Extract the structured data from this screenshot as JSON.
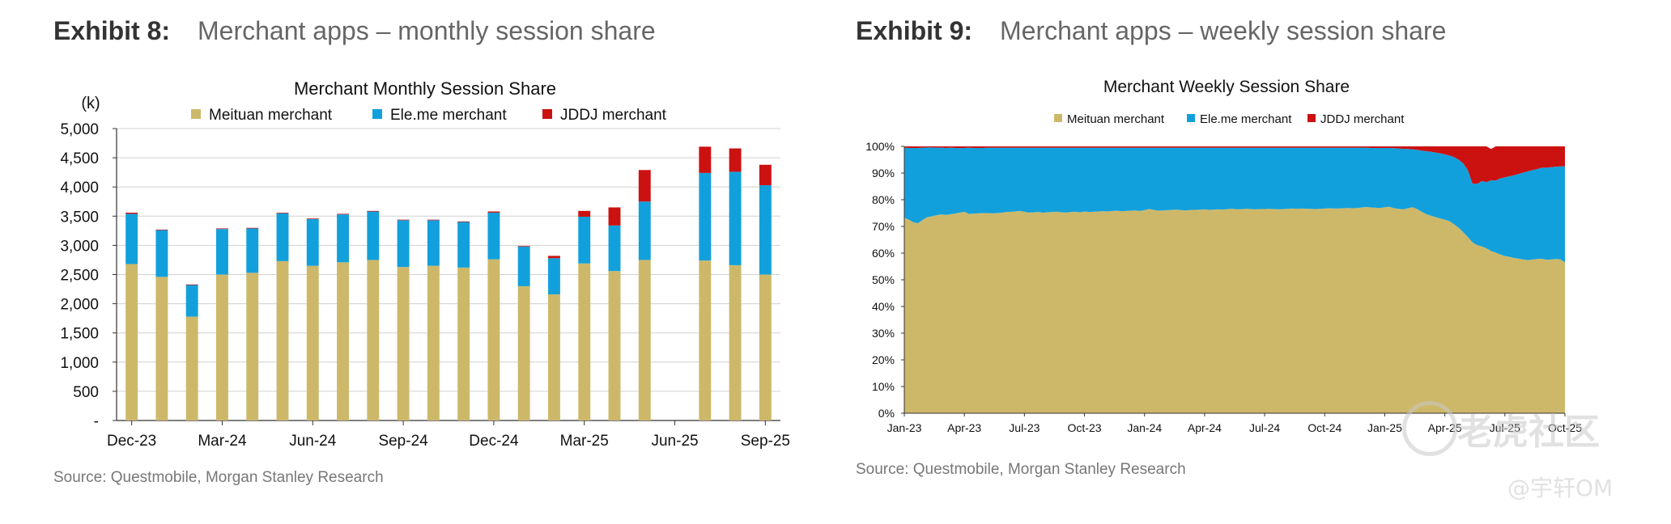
{
  "exhibits": [
    {
      "number": "Exhibit 8:",
      "title": "Merchant apps – monthly session share",
      "source": "Source: Questmobile, Morgan Stanley Research"
    },
    {
      "number": "Exhibit 9:",
      "title": "Merchant apps – weekly session share",
      "source": "Source: Questmobile, Morgan Stanley Research"
    }
  ],
  "watermark": {
    "brand": "老虎社区",
    "user": "@宇轩OM"
  },
  "chart_data": [
    {
      "type": "bar",
      "stacked": true,
      "title": "Merchant Monthly Session Share",
      "ylabel": "(k)",
      "ylim": [
        0,
        5000
      ],
      "yticks": [
        0,
        500,
        1000,
        1500,
        2000,
        2500,
        3000,
        3500,
        4000,
        4500,
        5000
      ],
      "ytick_labels": [
        "-",
        "500",
        "1,000",
        "1,500",
        "2,000",
        "2,500",
        "3,000",
        "3,500",
        "4,000",
        "4,500",
        "5,000"
      ],
      "categories": [
        "Dec-23",
        "Jan-24",
        "Feb-24",
        "Mar-24",
        "Apr-24",
        "May-24",
        "Jun-24",
        "Jul-24",
        "Aug-24",
        "Sep-24",
        "Oct-24",
        "Nov-24",
        "Dec-24",
        "Jan-25",
        "Feb-25",
        "Mar-25",
        "Apr-25",
        "May-25",
        "Jun-25",
        "Jul-25",
        "Aug-25",
        "Sep-25"
      ],
      "xtick_labels": [
        "Dec-23",
        "Mar-24",
        "Jun-24",
        "Sep-24",
        "Dec-24",
        "Mar-25",
        "Jun-25",
        "Sep-25"
      ],
      "xtick_indices": [
        0,
        3,
        6,
        9,
        12,
        15,
        18,
        21
      ],
      "legend_position": "top",
      "grid": true,
      "colors": {
        "meituan": "#cdb86a",
        "eleme": "#12a0dc",
        "jddj": "#cc1111"
      },
      "series": [
        {
          "name": "Meituan merchant",
          "key": "meituan",
          "values": [
            2680,
            2460,
            1780,
            2500,
            2530,
            2730,
            2650,
            2710,
            2750,
            2630,
            2650,
            2620,
            2760,
            2300,
            2160,
            2690,
            2560,
            2750,
            0,
            2740,
            2660,
            2500
          ]
        },
        {
          "name": "Ele.me merchant",
          "key": "eleme",
          "values": [
            860,
            800,
            540,
            780,
            760,
            820,
            800,
            820,
            830,
            800,
            780,
            780,
            800,
            680,
            620,
            800,
            780,
            1000,
            0,
            1500,
            1600,
            1530
          ]
        },
        {
          "name": "JDDJ merchant",
          "key": "jddj",
          "values": [
            20,
            10,
            10,
            10,
            10,
            10,
            10,
            10,
            10,
            10,
            10,
            10,
            20,
            10,
            40,
            100,
            310,
            540,
            0,
            450,
            400,
            350
          ]
        }
      ]
    },
    {
      "type": "area",
      "stacked": true,
      "percent": true,
      "title": "Merchant Weekly Session Share",
      "ylim": [
        0,
        100
      ],
      "yticks": [
        0,
        10,
        20,
        30,
        40,
        50,
        60,
        70,
        80,
        90,
        100
      ],
      "ytick_labels": [
        "0%",
        "10%",
        "20%",
        "30%",
        "40%",
        "50%",
        "60%",
        "70%",
        "80%",
        "90%",
        "100%"
      ],
      "xtick_labels": [
        "Jan-23",
        "Apr-23",
        "Jul-23",
        "Oct-23",
        "Jan-24",
        "Apr-24",
        "Jul-24",
        "Oct-24",
        "Jan-25",
        "Apr-25",
        "Jul-25",
        "Oct-25"
      ],
      "legend_position": "top",
      "colors": {
        "meituan": "#cdb86a",
        "eleme": "#12a0dc",
        "jddj": "#cc1111"
      },
      "x": [
        0,
        1,
        2,
        3,
        4,
        5,
        6,
        7,
        8,
        9,
        10,
        11,
        12,
        13,
        14,
        15,
        16,
        17,
        18,
        19,
        20,
        21,
        22,
        23,
        24,
        25,
        26,
        27,
        28,
        29,
        30,
        31,
        32,
        33,
        34,
        35,
        36,
        37,
        38,
        39,
        40,
        41,
        42,
        43,
        44,
        45,
        46,
        47,
        48,
        49,
        50,
        51,
        52,
        53,
        54,
        55,
        56,
        57,
        58,
        59,
        60,
        61,
        62,
        63,
        64,
        65,
        66,
        67,
        68,
        69,
        70,
        71,
        72,
        73,
        74,
        75,
        76,
        77,
        78,
        79,
        80,
        81,
        82,
        83,
        84,
        85,
        86,
        87,
        88,
        89,
        90,
        91,
        92,
        93,
        94,
        95,
        96,
        97,
        98,
        99,
        100,
        101,
        102,
        103,
        104,
        105,
        106,
        107,
        108,
        109,
        110,
        111,
        112,
        113,
        114,
        115,
        116,
        117,
        118,
        119,
        120,
        121,
        122,
        123,
        124,
        125,
        126,
        127,
        128,
        129,
        130,
        131,
        132,
        133,
        134,
        135,
        136,
        137,
        138,
        139,
        140,
        141,
        142,
        143
      ],
      "series": [
        {
          "name": "Meituan merchant",
          "key": "meituan",
          "values": [
            73.3,
            72.5,
            71.5,
            71.2,
            72.5,
            73.5,
            73.8,
            74.2,
            74.5,
            74.3,
            74.6,
            74.8,
            75.2,
            75.5,
            74.7,
            74.8,
            74.9,
            75.0,
            75.0,
            74.9,
            75.0,
            75.1,
            75.4,
            75.5,
            75.6,
            75.8,
            75.5,
            75.2,
            75.3,
            75.4,
            75.1,
            75.3,
            75.4,
            75.5,
            75.3,
            75.2,
            75.4,
            75.5,
            75.3,
            75.6,
            75.4,
            75.5,
            75.6,
            75.7,
            75.6,
            75.8,
            75.9,
            75.7,
            75.8,
            75.9,
            76.0,
            75.8,
            76.1,
            76.5,
            76.2,
            75.9,
            76.0,
            76.1,
            76.2,
            76.3,
            76.1,
            76.0,
            76.2,
            76.2,
            76.3,
            76.4,
            76.2,
            76.3,
            76.4,
            76.3,
            76.5,
            76.6,
            76.4,
            76.5,
            76.6,
            76.5,
            76.4,
            76.5,
            76.5,
            76.6,
            76.5,
            76.4,
            76.5,
            76.6,
            76.7,
            76.6,
            76.7,
            76.6,
            76.6,
            76.5,
            76.6,
            76.7,
            76.8,
            76.7,
            76.7,
            76.8,
            76.9,
            76.8,
            76.9,
            77.1,
            77.3,
            77.1,
            77.0,
            76.9,
            77.2,
            77.4,
            76.8,
            76.6,
            76.4,
            76.8,
            77.2,
            76.5,
            75.5,
            74.6,
            74.0,
            73.5,
            73.0,
            72.5,
            72.0,
            70.8,
            69.5,
            67.8,
            66.0,
            64.0,
            63.0,
            62.5,
            61.8,
            60.8,
            60.2,
            59.5,
            58.9,
            58.6,
            58.2,
            57.9,
            57.6,
            57.4,
            57.6,
            57.8,
            57.9,
            57.5,
            57.6,
            57.8,
            57.7,
            56.5
          ]
        },
        {
          "name": "Ele.me merchant",
          "key": "eleme",
          "values": [
            26.2,
            26.9,
            27.9,
            28.2,
            27.0,
            26.1,
            25.8,
            25.3,
            25.0,
            25.1,
            24.9,
            24.6,
            24.2,
            23.9,
            24.8,
            24.6,
            24.5,
            24.4,
            24.5,
            24.6,
            24.5,
            24.4,
            24.1,
            24.0,
            23.9,
            23.7,
            24.0,
            24.3,
            24.2,
            24.1,
            24.4,
            24.2,
            24.1,
            24.0,
            24.2,
            24.3,
            24.1,
            24.0,
            24.2,
            23.9,
            24.1,
            24.0,
            23.9,
            23.8,
            23.9,
            23.7,
            23.6,
            23.8,
            23.7,
            23.6,
            23.5,
            23.7,
            23.4,
            23.0,
            23.3,
            23.6,
            23.5,
            23.4,
            23.3,
            23.2,
            23.4,
            23.5,
            23.3,
            23.3,
            23.2,
            23.1,
            23.3,
            23.2,
            23.1,
            23.2,
            23.0,
            22.9,
            23.1,
            23.0,
            22.9,
            23.0,
            23.1,
            23.0,
            23.0,
            22.9,
            23.0,
            23.1,
            23.0,
            22.9,
            22.8,
            22.9,
            22.8,
            22.9,
            22.9,
            23.0,
            22.9,
            22.8,
            22.7,
            22.8,
            22.8,
            22.7,
            22.6,
            22.7,
            22.6,
            22.4,
            22.2,
            22.3,
            22.4,
            22.5,
            22.2,
            22.0,
            22.5,
            22.6,
            22.7,
            22.2,
            21.7,
            22.2,
            22.9,
            23.6,
            24.0,
            24.2,
            24.4,
            24.5,
            24.6,
            25.2,
            25.5,
            25.8,
            25.0,
            22.0,
            23.0,
            24.5,
            24.8,
            26.5,
            27.0,
            28.5,
            29.5,
            30.2,
            31.0,
            31.8,
            32.6,
            33.3,
            33.5,
            33.7,
            34.1,
            34.5,
            34.6,
            34.6,
            34.8,
            36.0
          ]
        },
        {
          "name": "JDDJ merchant",
          "key": "jddj",
          "values": [
            0.5,
            0.6,
            0.6,
            0.6,
            0.5,
            0.4,
            0.4,
            0.5,
            0.5,
            0.6,
            0.5,
            0.6,
            0.6,
            0.6,
            0.5,
            0.6,
            0.6,
            0.6,
            0.5,
            0.5,
            0.5,
            0.5,
            0.5,
            0.5,
            0.5,
            0.5,
            0.5,
            0.5,
            0.5,
            0.5,
            0.5,
            0.5,
            0.5,
            0.5,
            0.5,
            0.5,
            0.5,
            0.5,
            0.5,
            0.5,
            0.5,
            0.5,
            0.5,
            0.5,
            0.5,
            0.5,
            0.5,
            0.5,
            0.5,
            0.5,
            0.5,
            0.5,
            0.5,
            0.5,
            0.5,
            0.5,
            0.5,
            0.5,
            0.5,
            0.5,
            0.5,
            0.5,
            0.5,
            0.5,
            0.5,
            0.5,
            0.5,
            0.5,
            0.5,
            0.5,
            0.5,
            0.5,
            0.5,
            0.5,
            0.5,
            0.5,
            0.5,
            0.5,
            0.5,
            0.5,
            0.5,
            0.5,
            0.5,
            0.5,
            0.5,
            0.5,
            0.5,
            0.5,
            0.5,
            0.5,
            0.5,
            0.5,
            0.5,
            0.5,
            0.5,
            0.5,
            0.5,
            0.5,
            0.5,
            0.5,
            0.5,
            0.6,
            0.6,
            0.6,
            0.6,
            0.6,
            0.7,
            0.8,
            0.9,
            1.0,
            1.1,
            1.3,
            1.6,
            1.8,
            2.0,
            2.3,
            2.6,
            3.0,
            3.4,
            4.0,
            5.0,
            6.4,
            9.0,
            14.0,
            14.0,
            13.0,
            13.4,
            11.7,
            12.8,
            12.0,
            11.6,
            11.2,
            11.0,
            10.6,
            10.2,
            9.7,
            9.5,
            9.1,
            8.6,
            8.0,
            7.8,
            7.6,
            7.5,
            7.5
          ]
        }
      ]
    }
  ]
}
